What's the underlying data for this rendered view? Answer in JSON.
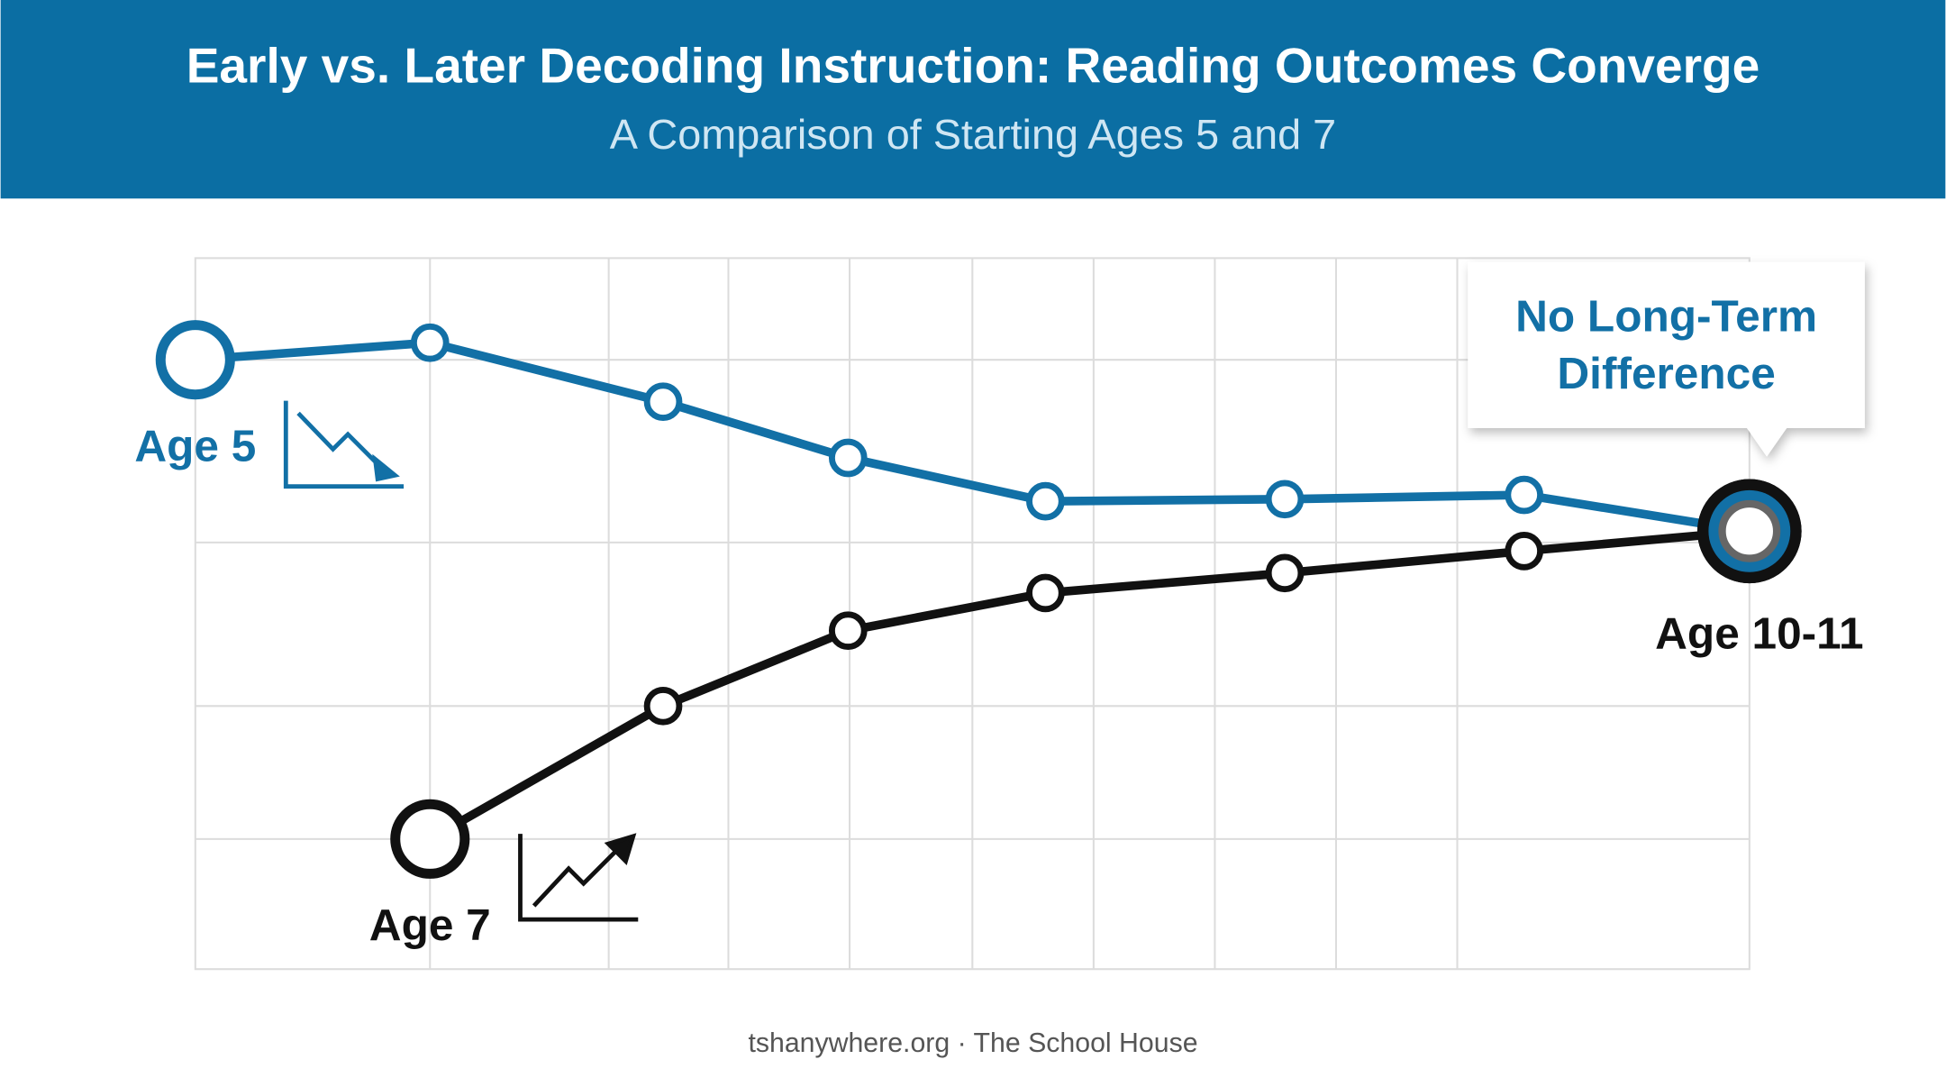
{
  "chart_data": {
    "type": "line",
    "title": "Early vs. Later Decoding Instruction: Reading Outcomes Converge",
    "subtitle": "A Comparison of Starting Ages 5 and 7",
    "xlim": [
      0,
      100
    ],
    "ylim": [
      0,
      100
    ],
    "xticks": [
      15.1,
      26.6,
      34.3,
      42.1,
      50.0,
      57.8,
      65.6,
      73.4,
      81.2
    ],
    "yticks": [
      18.3,
      37.0,
      60.0,
      85.7
    ],
    "grid": true,
    "series": [
      {
        "name": "Age 5",
        "color": "#1270a6",
        "x": [
          0,
          15.1,
          30.1,
          42.0,
          54.7,
          70.1,
          85.5,
          100
        ],
        "values": [
          85.7,
          88.1,
          79.8,
          71.9,
          65.8,
          66.1,
          66.7,
          61.6
        ]
      },
      {
        "name": "Age 7",
        "color": "#111111",
        "x": [
          15.1,
          30.1,
          42.0,
          54.7,
          70.1,
          85.5,
          100
        ],
        "values": [
          18.3,
          37.0,
          47.6,
          52.9,
          55.7,
          58.8,
          61.6
        ]
      }
    ],
    "annotations": [
      "No Long-Term Difference",
      "Age 10-11"
    ],
    "footer": "tshanywhere.org · The School House"
  }
}
